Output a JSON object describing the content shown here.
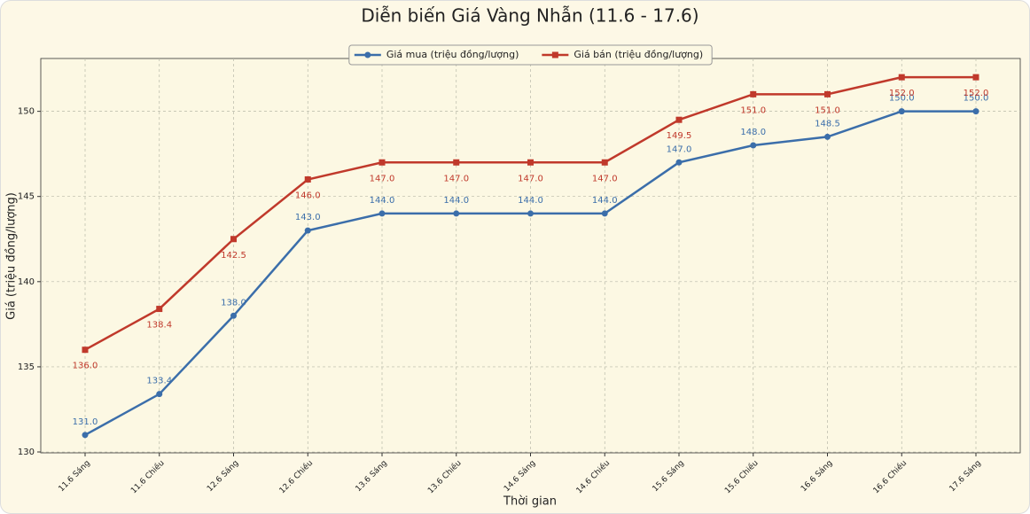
{
  "chart_data": {
    "type": "line",
    "title": "Diễn biến Giá Vàng Nhẫn (11.6 - 17.6)",
    "x_label": "Thời gian",
    "y_label": "Giá (triệu đồng/lượng)",
    "categories": [
      "11.6 Sáng",
      "11.6 Chiều",
      "12.6 Sáng",
      "12.6 Chiều",
      "13.6 Sáng",
      "13.6 Chiều",
      "14.6 Sáng",
      "14.6 Chiều",
      "15.6 Sáng",
      "15.6 Chiều",
      "16.6 Sáng",
      "16.6 Chiều",
      "17.6 Sáng"
    ],
    "series": [
      {
        "name": "Giá mua (triệu đồng/lượng)",
        "color": "#3b6eaa",
        "marker": "circle",
        "values": [
          131,
          133.4,
          138,
          143,
          144,
          144,
          144,
          144,
          147,
          148,
          148.5,
          150,
          150
        ],
        "value_labels": [
          "131.0",
          "133.4",
          "138.0",
          "143.0",
          "144.0",
          "144.0",
          "144.0",
          "144.0",
          "147.0",
          "148.0",
          "148.5",
          "150.0",
          "150.0"
        ]
      },
      {
        "name": "Giá bán (triệu đồng/lượng)",
        "color": "#c0392b",
        "marker": "square",
        "values": [
          136,
          138.4,
          142.5,
          146,
          147,
          147,
          147,
          147,
          149.5,
          151,
          151,
          152,
          152
        ],
        "value_labels": [
          "136.0",
          "138.4",
          "142.5",
          "146.0",
          "147.0",
          "147.0",
          "147.0",
          "147.0",
          "149.5",
          "151.0",
          "151.0",
          "152.0",
          "152.0"
        ]
      }
    ],
    "ylim": [
      129.95,
      153.1
    ],
    "yticks": [
      130,
      135,
      140,
      145,
      150
    ],
    "grid": true,
    "legend": "upper center"
  }
}
